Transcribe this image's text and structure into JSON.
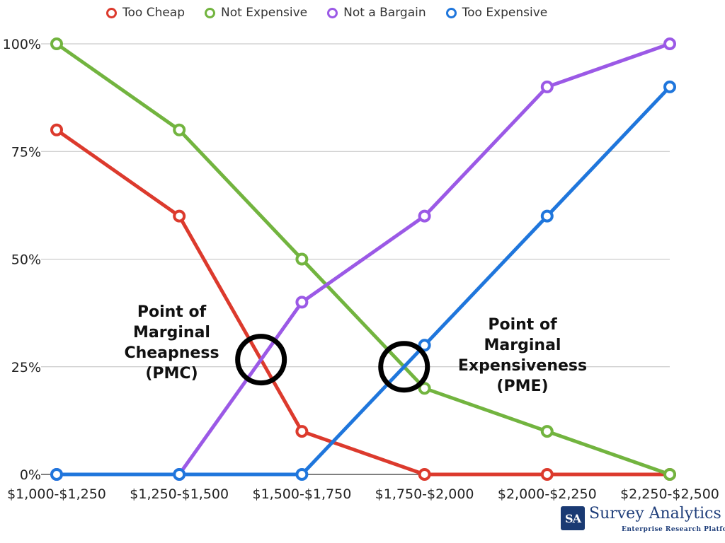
{
  "chart_data": {
    "type": "line",
    "categories": [
      "$1,000-$1,250",
      "$1,250-$1,500",
      "$1,500-$1,750",
      "$1,750-$2,000",
      "$2,000-$2,250",
      "$2,250-$2,500"
    ],
    "y_ticks": [
      "0%",
      "25%",
      "50%",
      "75%",
      "100%"
    ],
    "ylim": [
      0,
      100
    ],
    "grid": true,
    "legend_position": "top",
    "series": [
      {
        "name": "Too Cheap",
        "color": "#dc3a2d",
        "values": [
          80,
          60,
          10,
          0,
          0,
          0
        ]
      },
      {
        "name": "Not Expensive",
        "color": "#72b43f",
        "values": [
          100,
          80,
          50,
          20,
          10,
          0
        ]
      },
      {
        "name": "Not a Bargain",
        "color": "#9b59e6",
        "values": [
          0,
          0,
          40,
          60,
          90,
          100
        ]
      },
      {
        "name": "Too Expensive",
        "color": "#1f76dc",
        "values": [
          0,
          0,
          0,
          30,
          60,
          90
        ]
      }
    ],
    "annotations": [
      {
        "label": "Point of Marginal Cheapness (PMC)",
        "lines": [
          "Point of",
          "Marginal",
          "Cheapness",
          "(PMC)"
        ],
        "series_crossing": [
          "Too Cheap",
          "Not a Bargain"
        ]
      },
      {
        "label": "Point of Marginal Expensiveness (PME)",
        "lines": [
          "Point of",
          "Marginal",
          "Expensiveness",
          "(PME)"
        ],
        "series_crossing": [
          "Not Expensive",
          "Too Expensive"
        ]
      }
    ]
  },
  "brand": {
    "logo": "SA",
    "name": "Survey Analytics",
    "tagline": "Enterprise Research Platform"
  }
}
